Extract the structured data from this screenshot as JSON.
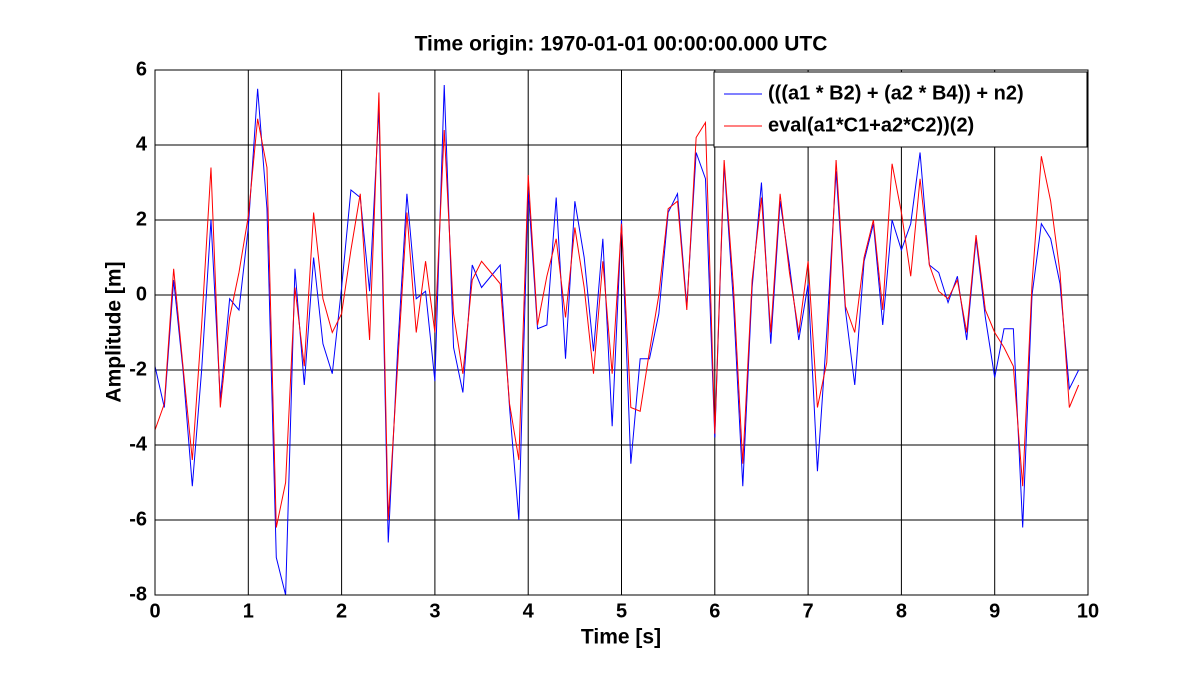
{
  "chart_data": {
    "type": "line",
    "title": "Time origin: 1970-01-01 00:00:00.000 UTC",
    "xlabel": "Time  [s]",
    "ylabel": "Amplitude  [m]",
    "x": [
      0,
      0.1,
      0.2,
      0.3,
      0.4,
      0.5,
      0.6,
      0.7,
      0.8,
      0.9,
      1,
      1.1,
      1.2,
      1.3,
      1.4,
      1.5,
      1.6,
      1.7,
      1.8,
      1.9,
      2,
      2.1,
      2.2,
      2.3,
      2.4,
      2.5,
      2.6,
      2.7,
      2.8,
      2.9,
      3,
      3.1,
      3.2,
      3.3,
      3.4,
      3.5,
      3.6,
      3.7,
      3.8,
      3.9,
      4,
      4.1,
      4.2,
      4.3,
      4.4,
      4.5,
      4.6,
      4.7,
      4.8,
      4.9,
      5,
      5.1,
      5.2,
      5.3,
      5.4,
      5.5,
      5.6,
      5.7,
      5.8,
      5.9,
      6,
      6.1,
      6.2,
      6.3,
      6.4,
      6.5,
      6.6,
      6.7,
      6.8,
      6.9,
      7,
      7.1,
      7.2,
      7.3,
      7.4,
      7.5,
      7.6,
      7.7,
      7.8,
      7.9,
      8,
      8.1,
      8.2,
      8.3,
      8.4,
      8.5,
      8.6,
      8.7,
      8.8,
      8.9,
      9,
      9.1,
      9.2,
      9.3,
      9.4,
      9.5,
      9.6,
      9.7,
      9.8,
      9.9
    ],
    "series": [
      {
        "name": "(((a1 * B2) + (a2 * B4)) + n2)",
        "color": "#0000ff",
        "values": [
          -1.9,
          -3.0,
          0.4,
          -2.0,
          -5.1,
          -2.0,
          2.0,
          -2.8,
          -0.1,
          -0.4,
          1.8,
          5.5,
          2.3,
          -7.0,
          -8.0,
          0.7,
          -2.4,
          1.0,
          -1.3,
          -2.1,
          0.2,
          2.8,
          2.6,
          0.1,
          5.0,
          -6.6,
          -1.5,
          2.7,
          -0.1,
          0.1,
          -2.3,
          5.6,
          -1.4,
          -2.6,
          0.8,
          0.2,
          0.5,
          0.8,
          -3.0,
          -6.0,
          2.8,
          -0.9,
          -0.8,
          2.6,
          -1.7,
          2.5,
          1.0,
          -1.5,
          1.5,
          -3.5,
          2.0,
          -4.5,
          -1.7,
          -1.7,
          -0.5,
          2.2,
          2.7,
          -0.3,
          3.8,
          3.1,
          -3.8,
          3.5,
          -0.2,
          -5.1,
          0.2,
          3.0,
          -1.3,
          2.5,
          0.8,
          -1.2,
          0.3,
          -4.7,
          -1.0,
          3.3,
          -0.4,
          -2.4,
          0.9,
          1.9,
          -0.8,
          2.0,
          1.2,
          1.9,
          3.8,
          0.8,
          0.6,
          -0.2,
          0.5,
          -1.2,
          1.5,
          -0.6,
          -2.2,
          -0.9,
          -0.9,
          -6.2,
          0.0,
          1.9,
          1.5,
          0.3,
          -2.5,
          -2.0
        ]
      },
      {
        "name": "eval(a1*C1+a2*C2))(2)",
        "color": "#ff0000",
        "values": [
          -3.6,
          -2.9,
          0.7,
          -1.9,
          -4.4,
          -0.8,
          3.4,
          -3.0,
          -0.6,
          0.6,
          2.1,
          4.7,
          3.4,
          -6.2,
          -5.0,
          0.2,
          -1.9,
          2.2,
          -0.1,
          -1.0,
          -0.5,
          1.2,
          2.7,
          -1.2,
          5.4,
          -6.0,
          -1.9,
          2.2,
          -1.0,
          0.9,
          -1.0,
          4.4,
          -0.5,
          -2.1,
          0.4,
          0.9,
          0.6,
          0.3,
          -2.9,
          -4.4,
          3.2,
          -0.8,
          0.5,
          1.5,
          -0.6,
          1.8,
          0.2,
          -2.1,
          0.9,
          -2.1,
          1.9,
          -3.0,
          -3.1,
          -1.5,
          0.0,
          2.3,
          2.5,
          -0.4,
          4.2,
          4.6,
          -3.7,
          3.6,
          0.2,
          -4.5,
          0.4,
          2.6,
          -1.0,
          2.7,
          0.6,
          -1.0,
          0.9,
          -3.0,
          -1.8,
          3.6,
          -0.3,
          -1.0,
          1.0,
          2.0,
          -0.4,
          3.5,
          2.2,
          0.5,
          3.1,
          0.8,
          0.1,
          -0.1,
          0.4,
          -1.0,
          1.6,
          -0.4,
          -1.0,
          -1.4,
          -1.9,
          -5.1,
          0.3,
          3.7,
          2.5,
          0.6,
          -3.0,
          -2.4
        ]
      }
    ],
    "xlim": [
      0,
      10
    ],
    "xticks": [
      0,
      1,
      2,
      3,
      4,
      5,
      6,
      7,
      8,
      9,
      10
    ],
    "ylim": [
      -8,
      6
    ],
    "yticks": [
      -8,
      -6,
      -4,
      -2,
      0,
      2,
      4,
      6
    ],
    "grid": true,
    "legend": "northeast"
  }
}
